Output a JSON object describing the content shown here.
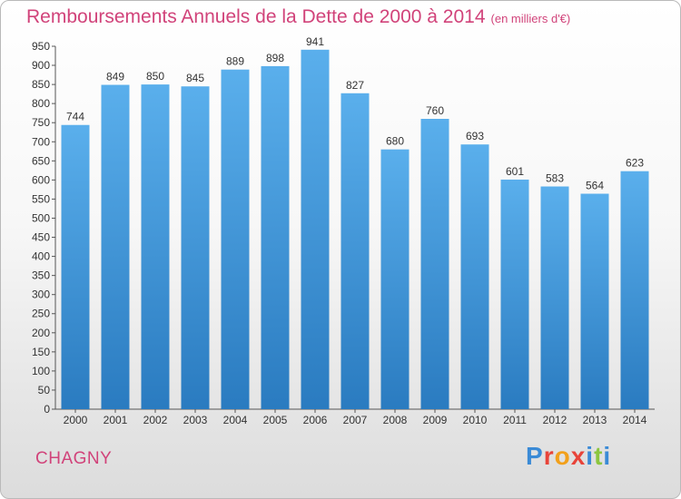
{
  "header": {
    "title": "Remboursements Annuels de la Dette de 2000 à 2014",
    "subtitle": "(en milliers d'€)"
  },
  "footer": {
    "city": "CHAGNY",
    "logo_text": "Proxiti"
  },
  "colors": {
    "title": "#d1437a",
    "bar_top": "#5aafec",
    "bar_bottom": "#2a7bc0",
    "logo": [
      "#3a8ad6",
      "#e8443a",
      "#f2a01b",
      "#e8443a",
      "#3a8ad6",
      "#8cc63f",
      "#3a8ad6"
    ]
  },
  "chart_data": {
    "type": "bar",
    "title": "Remboursements Annuels de la Dette de 2000 à 2014",
    "subtitle": "(en milliers d'€)",
    "xlabel": "",
    "ylabel": "",
    "categories": [
      "2000",
      "2001",
      "2002",
      "2003",
      "2004",
      "2005",
      "2006",
      "2007",
      "2008",
      "2009",
      "2010",
      "2011",
      "2012",
      "2013",
      "2014"
    ],
    "values": [
      744,
      849,
      850,
      845,
      889,
      898,
      941,
      827,
      680,
      760,
      693,
      601,
      583,
      564,
      623
    ],
    "ylim": [
      0,
      950
    ],
    "ytick_step": 50,
    "grid": false,
    "legend": "none"
  }
}
